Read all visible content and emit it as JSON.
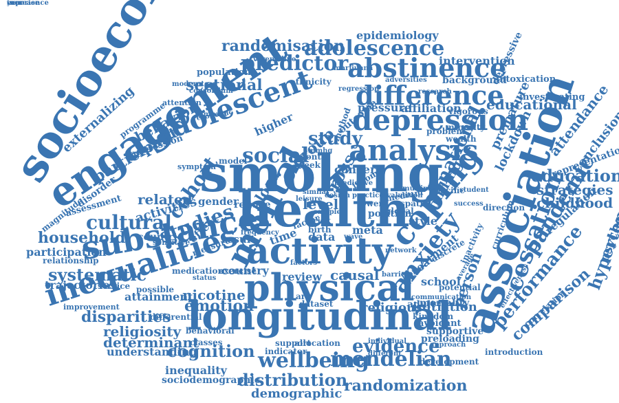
{
  "colors": {
    "word": "#3a75b2",
    "background": "#ffffff"
  },
  "words": [
    "socioeconomic",
    "engagement",
    "smoking",
    "health",
    "association",
    "longitudinal",
    "physical",
    "activity",
    "inequalities",
    "substance",
    "mental",
    "coping",
    "depression",
    "analysis",
    "difference",
    "abstinence",
    "adolescence",
    "adolescent",
    "predictor",
    "randomisation",
    "social",
    "wellbeing",
    "mendelian",
    "cognition",
    "distribution",
    "cessation",
    "anxiety",
    "performance",
    "comparison",
    "pandemic",
    "education",
    "hypertension",
    "disparities",
    "evidence",
    "studies",
    "cultural",
    "cohort",
    "study",
    "religiosity",
    "determinant",
    "randomization",
    "demographic",
    "household",
    "systematic",
    "participant",
    "externalizing",
    "behavior",
    "educational",
    "intervention",
    "epidemiology",
    "sectional",
    "group",
    "country",
    "review",
    "emotion",
    "nicotine",
    "religious",
    "initiation",
    "attendance",
    "conclusion",
    "strategies",
    "childhood",
    "psychosocial",
    "representation",
    "regulation",
    "person",
    "cross",
    "finding",
    "national",
    "level",
    "related",
    "activities",
    "participation",
    "trajectories",
    "attainment",
    "understanding",
    "inequality",
    "sociodemographic",
    "relationship",
    "magnitude",
    "assessment",
    "disorder",
    "gender",
    "countrie",
    "effect",
    "result",
    "time",
    "data",
    "meta",
    "causal",
    "school",
    "mortality",
    "supportive",
    "preloading",
    "avoidant",
    "kingdom",
    "background",
    "investigating",
    "intoxication",
    "depressive",
    "premature",
    "lockdown",
    "pressure",
    "affiliation",
    "outcome",
    "higher",
    "month",
    "week",
    "income",
    "model",
    "method",
    "problem",
    "minority",
    "wealth",
    "student",
    "success",
    "spatial",
    "multiple",
    "direction",
    "specific",
    "lower",
    "position",
    "global",
    "style",
    "factor",
    "birth",
    "risk",
    "reduce",
    "blood",
    "art",
    "dataset",
    "support",
    "allocation",
    "indicator",
    "individual",
    "approach",
    "development",
    "introduction",
    "communication",
    "potential",
    "treatment",
    "adult",
    "alcohol",
    "average",
    "inactivity",
    "correlation",
    "effectiveness",
    "curriculum",
    "ethnicity",
    "regression",
    "research",
    "population",
    "consortium",
    "moderate",
    "attention",
    "varenicline",
    "marijuana",
    "adversities",
    "programme",
    "aggression",
    "economic",
    "symptom",
    "classes",
    "medication",
    "exercise",
    "service",
    "improvement",
    "differential",
    "behavioral",
    "possible",
    "sensitive",
    "measure",
    "control",
    "barrier",
    "discrete",
    "different",
    "vigorous",
    "concern",
    "predictive",
    "wave",
    "network",
    "medium",
    "leisure",
    "similar",
    "design",
    "practice",
    "sample",
    "evaluation",
    "status",
    "factors",
    "impact",
    "frequency",
    "mmhg",
    "experience",
    "increase",
    "year"
  ]
}
